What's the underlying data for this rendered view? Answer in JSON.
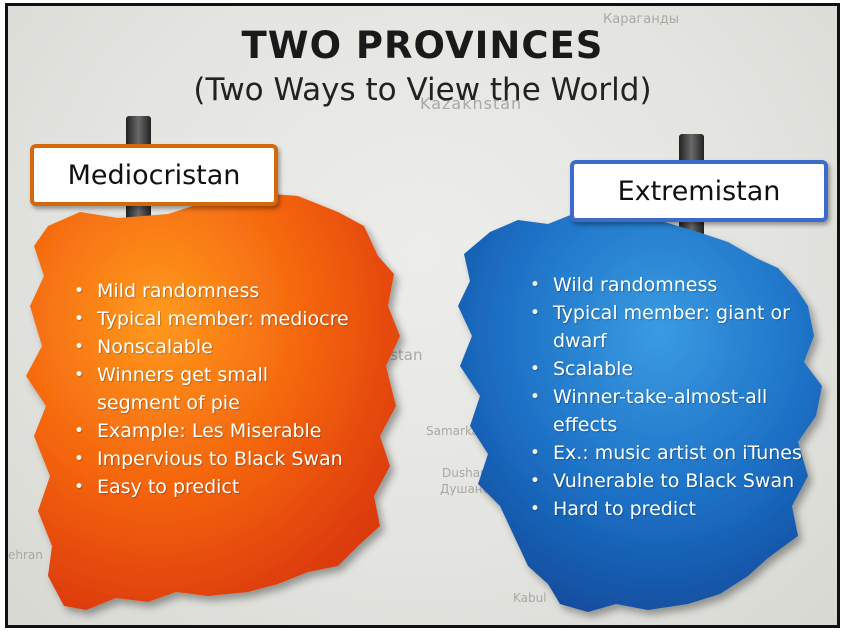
{
  "slide": {
    "title": "TWO PROVINCES",
    "subtitle": "(Two Ways to View the World)"
  },
  "map_labels": {
    "karaganda": "Караганды",
    "kazakhstan": "Kazakhstan",
    "stan": "ekistan",
    "samarkand": "Samarkand",
    "dushanbe": "Dushanbe",
    "dushanbe_cyr": "Душанбе",
    "tehran": "ehran",
    "kabul": "Kabul"
  },
  "provinces": {
    "mediocristan": {
      "label": "Mediocristan",
      "color": "#f26a0f",
      "border_color": "#d3680c",
      "points": [
        "Mild randomness",
        "Typical member: mediocre",
        "Nonscalable",
        "Winners get small segment of pie",
        "Example: Les Miserable",
        "Impervious to Black Swan",
        "Easy to predict"
      ]
    },
    "extremistan": {
      "label": "Extremistan",
      "color": "#1f74c8",
      "border_color": "#3c6bc9",
      "points": [
        "Wild randomness",
        "Typical member: giant or dwarf",
        "Scalable",
        "Winner-take-almost-all effects",
        "Ex.: music artist on iTunes",
        "Vulnerable to Black Swan",
        "Hard to predict"
      ]
    }
  }
}
